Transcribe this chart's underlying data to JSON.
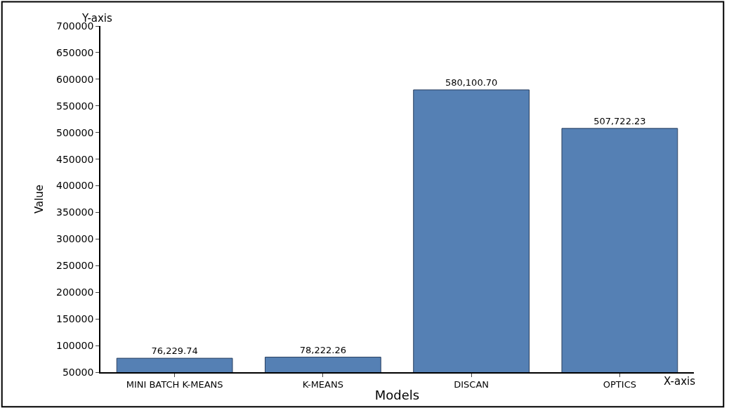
{
  "chart_data": {
    "type": "bar",
    "xlabel": "Models",
    "ylabel": "Value",
    "categories": [
      "MINI BATCH K-MEANS",
      "K-MEANS",
      "DISCAN",
      "OPTICS"
    ],
    "values": [
      76229.74,
      78222.26,
      580100.7,
      507722.23
    ],
    "value_labels": [
      "76,229.74",
      "78,222.26",
      "580,100.70",
      "507,722.23"
    ],
    "color": "#5580b4",
    "ylim": [
      50000,
      700000
    ],
    "yticks": [
      50000,
      100000,
      150000,
      200000,
      250000,
      300000,
      350000,
      400000,
      450000,
      500000,
      550000,
      600000,
      650000,
      700000
    ],
    "annotations": [
      "Y-axis",
      "X-axis"
    ],
    "legend": false
  }
}
